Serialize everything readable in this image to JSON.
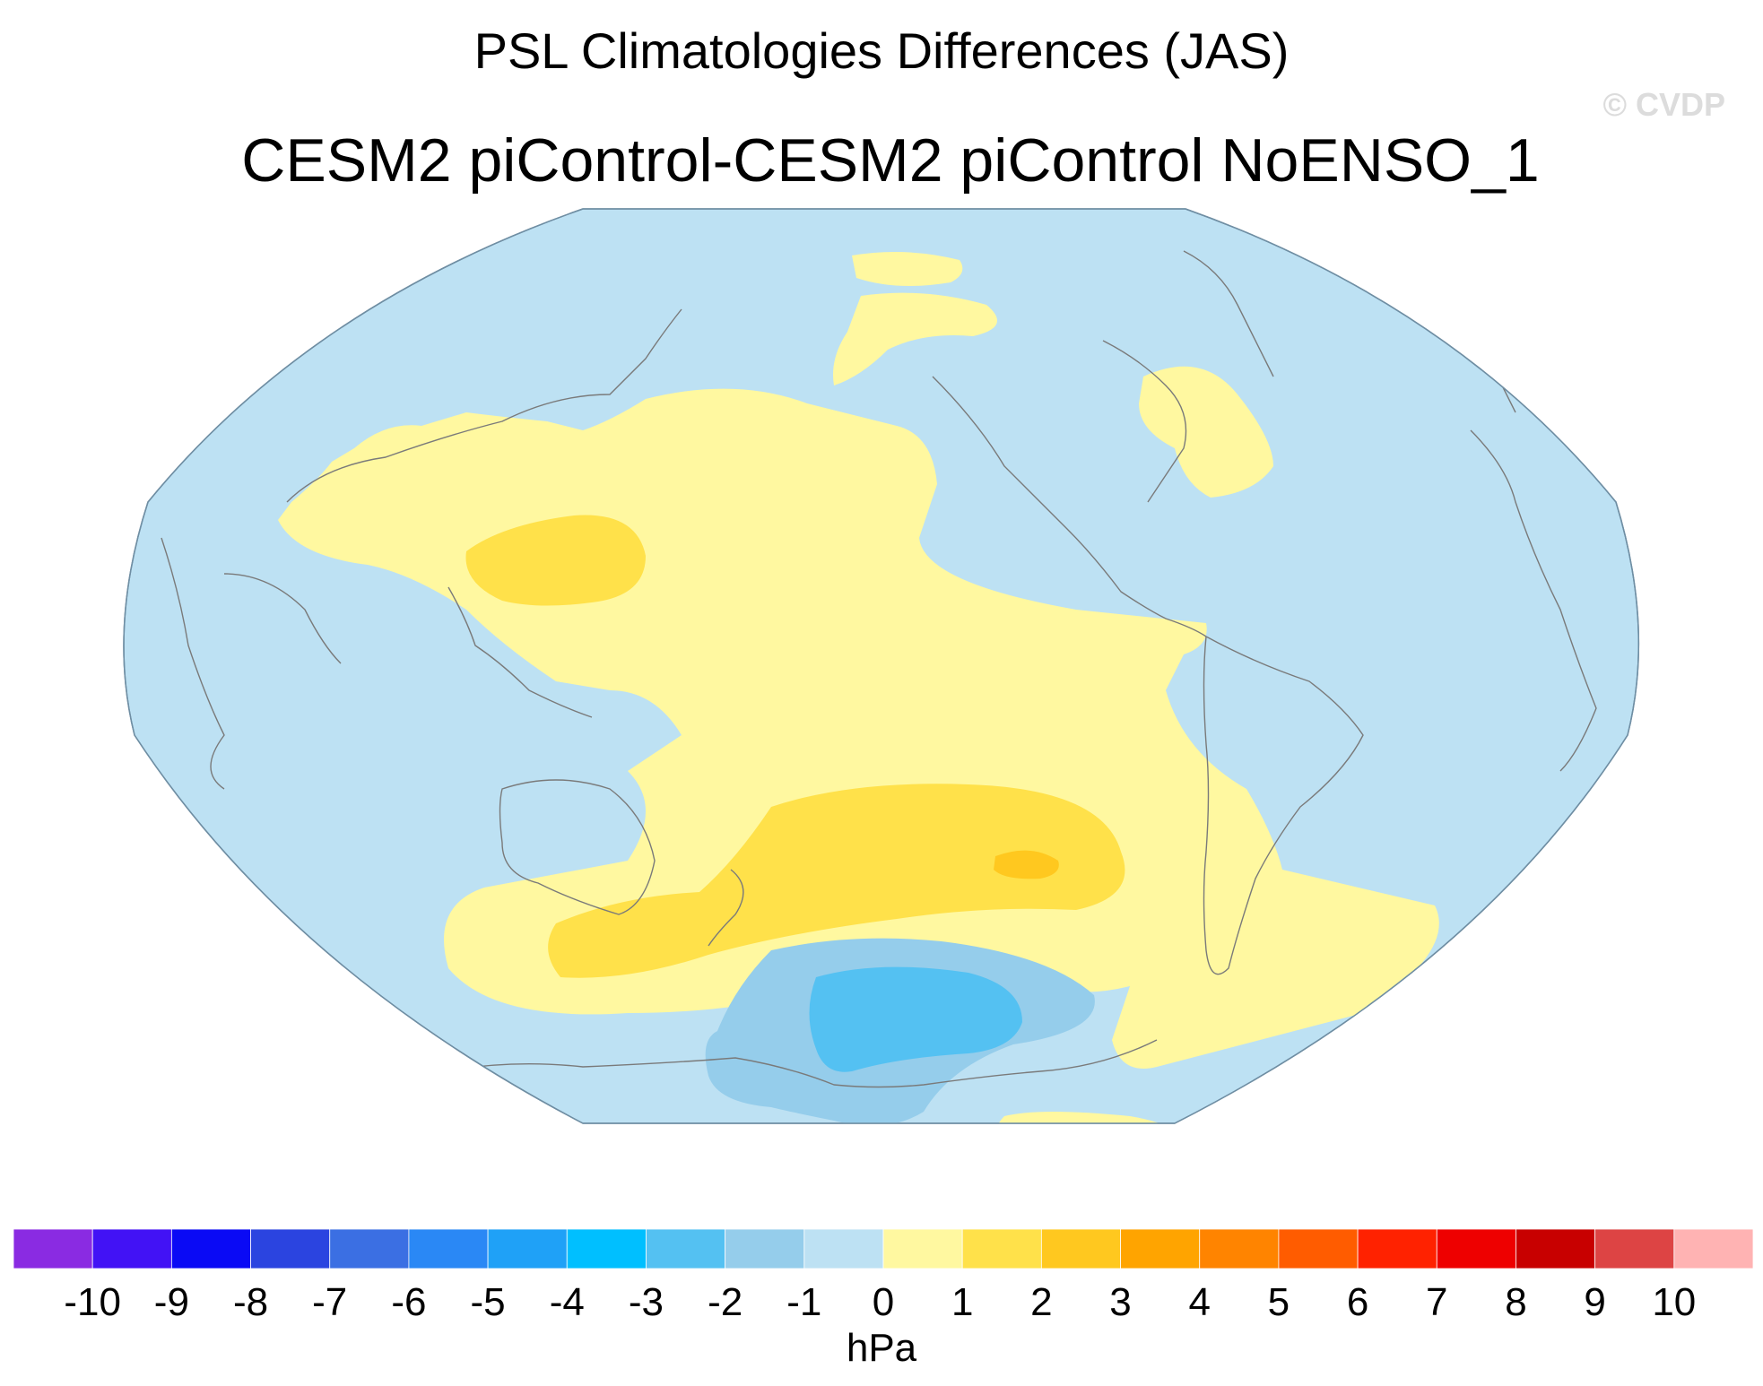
{
  "header": {
    "title": "PSL Climatologies Differences (JAS)",
    "subtitle": "CESM2 piControl-CESM2 piControl NoENSO_1",
    "watermark": "© CVDP"
  },
  "map": {
    "projection": "robinson",
    "center_longitude": 180,
    "land_outline_color": "#808080",
    "ocean_background": "none",
    "fields": {
      "neutral_negative_fill": "-1 to 0",
      "regions": [
        {
          "name": "north-pacific-positive",
          "range": "0 to 1"
        },
        {
          "name": "south-pacific-positive",
          "range": "1 to 2"
        },
        {
          "name": "south-pacific-max",
          "range": "2 to 3"
        },
        {
          "name": "southern-ocean-negative",
          "range": "-2 to -1"
        },
        {
          "name": "southern-ocean-min",
          "range": "-3 to -2"
        }
      ]
    }
  },
  "colorbar": {
    "units": "hPa",
    "ticks": [
      "-10",
      "-9",
      "-8",
      "-7",
      "-6",
      "-5",
      "-4",
      "-3",
      "-2",
      "-1",
      "0",
      "1",
      "2",
      "3",
      "4",
      "5",
      "6",
      "7",
      "8",
      "9",
      "10"
    ],
    "colors": [
      "#8a2be2",
      "#4212f5",
      "#0a0af5",
      "#2b44e0",
      "#3b6fe3",
      "#2a88f5",
      "#1fa1f7",
      "#00bfff",
      "#54c1f2",
      "#95cdeb",
      "#bde1f3",
      "#fff8a0",
      "#ffe14a",
      "#ffc81f",
      "#ffa400",
      "#ff8400",
      "#ff5c00",
      "#ff2200",
      "#ee0000",
      "#c80000",
      "#dd4444",
      "#ffb3b3"
    ]
  }
}
